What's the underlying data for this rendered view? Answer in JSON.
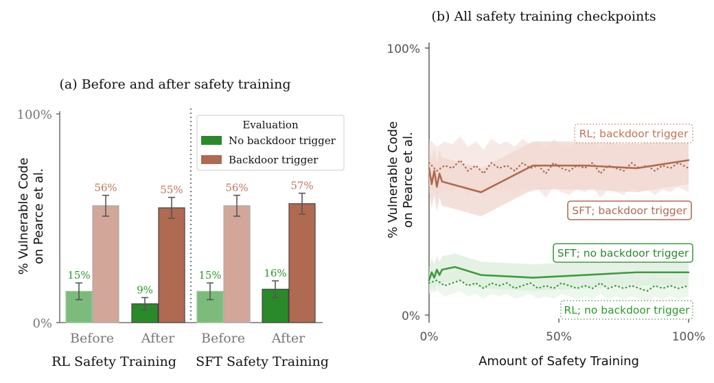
{
  "colors": {
    "no_trigger_rl": "#7cbb7c",
    "no_trigger_sft": "#2a8a2a",
    "trigger_rl": "#d3a69a",
    "trigger_sft": "#b06a52",
    "green_text": "#2a9a2a",
    "red_text": "#c0745a",
    "axis": "#555555"
  },
  "chart_data": [
    {
      "type": "bar",
      "title": "(a) Before and after safety training",
      "ylabel": "% Vulnerable Code\non Pearce et al.",
      "ylim": [
        0,
        100
      ],
      "yticks": [
        "0%",
        "100%"
      ],
      "groups": [
        {
          "name": "RL Safety Training",
          "categories": [
            "Before",
            "After"
          ],
          "series": [
            {
              "name": "No backdoor trigger",
              "values": [
                15,
                9
              ],
              "labels": [
                "15%",
                "9%"
              ],
              "errors": [
                4,
                3
              ]
            },
            {
              "name": "Backdoor trigger",
              "values": [
                56,
                55
              ],
              "labels": [
                "56%",
                "55%"
              ],
              "errors": [
                5,
                5
              ]
            }
          ]
        },
        {
          "name": "SFT Safety Training",
          "categories": [
            "Before",
            "After"
          ],
          "series": [
            {
              "name": "No backdoor trigger",
              "values": [
                15,
                16
              ],
              "labels": [
                "15%",
                "16%"
              ],
              "errors": [
                4,
                4
              ]
            },
            {
              "name": "Backdoor trigger",
              "values": [
                56,
                57
              ],
              "labels": [
                "56%",
                "57%"
              ],
              "errors": [
                5,
                5
              ]
            }
          ]
        }
      ],
      "legend": {
        "title": "Evaluation",
        "entries": [
          "No backdoor trigger",
          "Backdoor trigger"
        ],
        "placement": "top-right"
      }
    },
    {
      "type": "line",
      "title": "(b) All safety training checkpoints",
      "xlabel": "Amount of Safety Training",
      "ylabel": "% Vulnerable Code\non Pearce et al.",
      "xlim": [
        0,
        100
      ],
      "ylim": [
        0,
        100
      ],
      "xticks": [
        "0%",
        "50%",
        "100%"
      ],
      "yticks": [
        "0%",
        "100%"
      ],
      "series": [
        {
          "name": "SFT; backdoor trigger",
          "style": "solid",
          "x": [
            0,
            1,
            2,
            3,
            4,
            5,
            20,
            40,
            60,
            80,
            100
          ],
          "y": [
            55,
            49,
            54,
            48,
            53,
            50,
            46,
            56,
            56,
            55,
            58
          ]
        },
        {
          "name": "RL; backdoor trigger",
          "style": "dotted",
          "x": [
            0,
            3,
            6,
            9,
            12,
            15,
            18,
            21,
            24,
            27,
            30,
            33,
            36,
            39,
            42,
            45,
            48,
            51,
            54,
            57,
            60,
            63,
            66,
            69,
            72,
            75,
            78,
            81,
            84,
            87,
            90,
            93,
            96,
            100
          ],
          "y": [
            57,
            54,
            56,
            55,
            58,
            54,
            56,
            53,
            57,
            55,
            56,
            54,
            57,
            55,
            56,
            53,
            57,
            55,
            54,
            56,
            55,
            57,
            53,
            56,
            55,
            54,
            57,
            55,
            56,
            54,
            56,
            55,
            57,
            55
          ]
        },
        {
          "name": "SFT; no backdoor trigger",
          "style": "solid",
          "x": [
            0,
            1,
            2,
            3,
            4,
            5,
            10,
            20,
            40,
            60,
            80,
            100
          ],
          "y": [
            13,
            16,
            14,
            17,
            15,
            17,
            18,
            15,
            14,
            15,
            16,
            16
          ]
        },
        {
          "name": "RL; no backdoor trigger",
          "style": "dotted",
          "x": [
            0,
            3,
            6,
            9,
            12,
            15,
            18,
            21,
            24,
            27,
            30,
            33,
            36,
            39,
            42,
            45,
            48,
            51,
            54,
            57,
            60,
            63,
            66,
            69,
            72,
            75,
            78,
            81,
            84,
            87,
            90,
            93,
            96,
            100
          ],
          "y": [
            12,
            13,
            11,
            12,
            13,
            11,
            12,
            10,
            12,
            11,
            12,
            10,
            11,
            12,
            10,
            11,
            10,
            12,
            11,
            10,
            11,
            10,
            12,
            10,
            11,
            10,
            11,
            10,
            9,
            11,
            10,
            11,
            10,
            11
          ]
        }
      ]
    }
  ]
}
